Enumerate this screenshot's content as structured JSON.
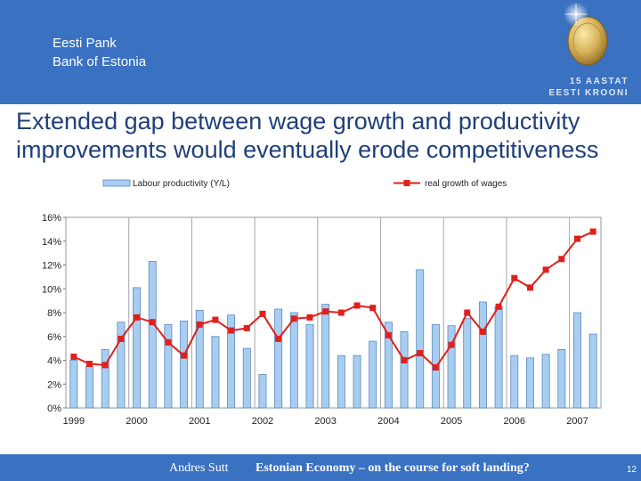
{
  "header": {
    "org_line1": "Eesti Pank",
    "org_line2": "Bank of Estonia",
    "badge_line1": "15 AASTAT",
    "badge_line2": "EESTI KROONI"
  },
  "slide": {
    "title": "Extended gap between wage growth and productivity improvements would eventually erode competitiveness"
  },
  "footer": {
    "author": "Andres Sutt",
    "title": "Estonian Economy – on the course for soft landing?",
    "page": "12"
  },
  "colors": {
    "header_bg": "#3a71c1",
    "bar_fill": "#a9cdef",
    "bar_stroke": "#5b89c2",
    "line_color": "#e0201b"
  },
  "chart_data": {
    "type": "bar",
    "combo": "bar+line",
    "legend_position": "top",
    "grid": "vertical",
    "ylim": [
      0,
      16
    ],
    "y_ticks": [
      "0%",
      "2%",
      "4%",
      "6%",
      "8%",
      "10%",
      "12%",
      "14%",
      "16%"
    ],
    "x_tick_labels": [
      "1999",
      "2000",
      "2001",
      "2002",
      "2003",
      "2004",
      "2005",
      "2006",
      "2007"
    ],
    "x_tick_positions": [
      0,
      4,
      8,
      12,
      16,
      20,
      24,
      28,
      32
    ],
    "series": [
      {
        "name": "Labour productivity (Y/L)",
        "type": "bar",
        "values": [
          4.0,
          3.5,
          4.9,
          7.2,
          10.1,
          12.3,
          7.0,
          7.3,
          8.2,
          6.0,
          7.8,
          5.0,
          2.8,
          8.3,
          8.0,
          7.0,
          8.7,
          4.4,
          4.4,
          5.6,
          7.2,
          6.4,
          11.6,
          7.0,
          6.9,
          7.5,
          8.9,
          8.5,
          4.4,
          4.2,
          4.5,
          4.9,
          8.0,
          6.2
        ]
      },
      {
        "name": "real growth of wages",
        "type": "line",
        "values": [
          4.3,
          3.7,
          3.6,
          5.8,
          7.6,
          7.2,
          5.5,
          4.4,
          7.0,
          7.4,
          6.5,
          6.7,
          7.9,
          5.8,
          7.5,
          7.6,
          8.1,
          8.0,
          8.6,
          8.4,
          6.1,
          4.0,
          4.6,
          3.4,
          5.3,
          8.0,
          6.4,
          8.5,
          10.9,
          10.1,
          11.6,
          12.5,
          14.2,
          14.8
        ]
      }
    ]
  }
}
